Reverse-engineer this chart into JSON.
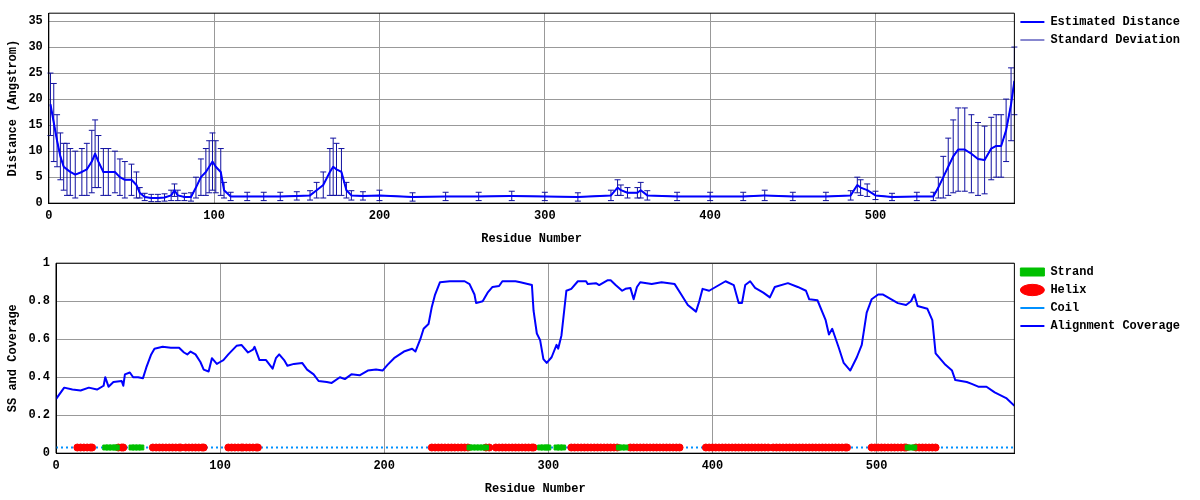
{
  "chart_data": [
    {
      "type": "line",
      "xlabel": "Residue Number",
      "ylabel": "Distance (Angstrom)",
      "xlim": [
        0,
        584
      ],
      "xticks": [
        0,
        100,
        200,
        300,
        400,
        500
      ],
      "ylim": [
        0,
        36.5
      ],
      "yticks": [
        0,
        5,
        10,
        15,
        20,
        25,
        30,
        35
      ],
      "grid": true,
      "legend": "top right",
      "series": [
        {
          "name": "Estimated Distance",
          "color": "#0000ff",
          "marker": "none",
          "x": [
            1,
            3,
            5,
            7,
            9,
            11,
            13,
            16,
            20,
            23,
            26,
            28,
            30,
            33,
            36,
            40,
            43,
            46,
            50,
            53,
            55,
            58,
            62,
            66,
            70,
            74,
            76,
            78,
            82,
            86,
            89,
            92,
            95,
            97,
            99,
            101,
            104,
            106,
            110,
            120,
            130,
            140,
            150,
            158,
            162,
            166,
            170,
            172,
            174,
            177,
            180,
            183,
            190,
            200,
            220,
            240,
            260,
            280,
            300,
            320,
            340,
            344,
            346,
            350,
            356,
            358,
            362,
            380,
            400,
            420,
            433,
            450,
            470,
            485,
            489,
            491,
            495,
            500,
            510,
            525,
            535,
            538,
            541,
            544,
            547,
            550,
            554,
            558,
            562,
            566,
            570,
            573,
            576,
            579,
            582,
            584
          ],
          "values": [
            19,
            15.5,
            12,
            9,
            7,
            6.5,
            6,
            5.5,
            6,
            6.5,
            8,
            9.5,
            8,
            6,
            6,
            6,
            5,
            4.5,
            4.5,
            3.5,
            2,
            1.2,
            1,
            1,
            1.1,
            1.5,
            2.5,
            1.5,
            1.2,
            1.2,
            3,
            5,
            6,
            7,
            8,
            7,
            6,
            2.5,
            1.3,
            1.3,
            1.3,
            1.3,
            1.4,
            1.5,
            2.5,
            3.5,
            6,
            7,
            6.5,
            6,
            2.5,
            1.5,
            1.4,
            1.5,
            1.2,
            1.3,
            1.3,
            1.4,
            1.3,
            1.2,
            1.5,
            3,
            2.5,
            2,
            2,
            2.5,
            1.5,
            1.3,
            1.3,
            1.3,
            1.5,
            1.3,
            1.3,
            1.5,
            3.5,
            3,
            2.5,
            1.5,
            1.2,
            1.3,
            1.3,
            3,
            5,
            7,
            9,
            10.3,
            10.3,
            9.5,
            8.5,
            8.3,
            10.5,
            11,
            11,
            14,
            19,
            23.5
          ]
        },
        {
          "name": "Standard Deviation",
          "color": "#1010a0",
          "marker": "none",
          "x": [
            1,
            3,
            5,
            7,
            9,
            11,
            13,
            16,
            20,
            23,
            26,
            28,
            30,
            33,
            36,
            40,
            43,
            46,
            50,
            53,
            55,
            58,
            62,
            66,
            70,
            74,
            76,
            78,
            82,
            86,
            89,
            92,
            95,
            97,
            99,
            101,
            104,
            106,
            110,
            120,
            130,
            140,
            150,
            158,
            162,
            166,
            170,
            172,
            174,
            177,
            180,
            183,
            190,
            200,
            220,
            240,
            260,
            280,
            300,
            320,
            340,
            344,
            346,
            350,
            356,
            358,
            362,
            380,
            400,
            420,
            433,
            450,
            470,
            485,
            489,
            491,
            495,
            500,
            510,
            525,
            535,
            538,
            541,
            544,
            547,
            550,
            554,
            558,
            562,
            566,
            570,
            573,
            576,
            579,
            582,
            584
          ],
          "values": [
            19,
            15.5,
            12,
            9,
            7,
            6.5,
            6,
            5.5,
            6,
            6.5,
            8,
            9.5,
            8,
            6,
            6,
            6,
            5,
            4.5,
            4.5,
            3.5,
            2,
            1.2,
            1,
            1,
            1.1,
            1.5,
            2.5,
            1.5,
            1.2,
            1.2,
            3,
            5,
            6,
            7,
            8,
            7,
            6,
            2.5,
            1.3,
            1.3,
            1.3,
            1.3,
            1.4,
            1.5,
            2.5,
            3.5,
            6,
            7,
            6.5,
            6,
            2.5,
            1.5,
            1.4,
            1.5,
            1.2,
            1.3,
            1.3,
            1.4,
            1.3,
            1.2,
            1.5,
            3,
            2.5,
            2,
            2,
            2.5,
            1.5,
            1.3,
            1.3,
            1.3,
            1.5,
            1.3,
            1.3,
            1.5,
            3.5,
            3,
            2.5,
            1.5,
            1.2,
            1.3,
            1.3,
            3,
            5,
            7,
            9,
            10.3,
            10.3,
            9.5,
            8.5,
            8.3,
            10.5,
            11,
            11,
            14,
            19,
            23.5
          ],
          "errors": [
            6,
            7.5,
            5,
            4.5,
            4.5,
            5,
            4.5,
            4.5,
            4.5,
            5,
            6,
            6.5,
            5,
            4.5,
            4.5,
            4,
            3.5,
            3.5,
            3,
            2.5,
            1,
            0.7,
            0.7,
            0.7,
            0.7,
            1,
            1.2,
            1,
            0.7,
            0.8,
            2,
            3.5,
            4.5,
            5,
            5.5,
            5,
            4.5,
            1.5,
            0.8,
            0.8,
            0.8,
            0.8,
            0.8,
            0.9,
            1.5,
            2.5,
            4.5,
            5.5,
            5,
            4.5,
            1.5,
            0.9,
            0.8,
            1,
            0.8,
            0.8,
            0.8,
            0.9,
            0.8,
            0.8,
            1,
            1.5,
            1,
            1,
            1,
            1.5,
            0.9,
            0.8,
            0.8,
            0.8,
            1,
            0.8,
            0.8,
            0.9,
            1.5,
            1.5,
            1.2,
            0.8,
            0.7,
            0.8,
            0.8,
            2,
            4,
            5.5,
            7,
            8,
            8,
            7.5,
            7,
            6.5,
            6,
            6,
            6,
            6,
            7,
            6.5
          ]
        }
      ]
    },
    {
      "type": "line",
      "xlabel": "Residue Number",
      "ylabel": "SS and Coverage",
      "xlim": [
        0,
        584
      ],
      "xticks": [
        0,
        100,
        200,
        300,
        400,
        500
      ],
      "ylim": [
        0,
        1
      ],
      "yticks": [
        0,
        0.2,
        0.4,
        0.6,
        0.8,
        1
      ],
      "grid": true,
      "legend": "top right",
      "series": [
        {
          "name": "Helix",
          "type": "scatter",
          "color": "#ff0000",
          "marker": "circle",
          "x": [
            13,
            15,
            17,
            19,
            21,
            22,
            38,
            40,
            41,
            59,
            61,
            63,
            65,
            67,
            69,
            71,
            73,
            75,
            76,
            79,
            81,
            83,
            85,
            87,
            89,
            90,
            105,
            107,
            109,
            111,
            113,
            114,
            116,
            118,
            120,
            122,
            123,
            229,
            231,
            233,
            235,
            237,
            239,
            241,
            243,
            245,
            247,
            249,
            251,
            262,
            264,
            268,
            270,
            272,
            274,
            276,
            278,
            280,
            282,
            284,
            286,
            288,
            290,
            291,
            314,
            316,
            318,
            320,
            322,
            324,
            326,
            328,
            330,
            332,
            334,
            336,
            338,
            340,
            342,
            350,
            352,
            354,
            356,
            358,
            360,
            362,
            364,
            366,
            368,
            370,
            372,
            374,
            376,
            378,
            380,
            396,
            398,
            400,
            402,
            404,
            406,
            408,
            410,
            412,
            414,
            416,
            418,
            420,
            422,
            424,
            426,
            428,
            430,
            432,
            434,
            437,
            439,
            441,
            443,
            445,
            447,
            449,
            451,
            453,
            455,
            457,
            459,
            461,
            463,
            465,
            467,
            469,
            471,
            473,
            475,
            477,
            479,
            481,
            482,
            497,
            499,
            501,
            503,
            505,
            507,
            509,
            511,
            513,
            515,
            517,
            518,
            524,
            526,
            528,
            530,
            532,
            534,
            536
          ],
          "values": [
            0.03,
            0.03,
            0.03,
            0.03,
            0.03,
            0.03,
            0.03,
            0.03,
            0.03,
            0.03,
            0.03,
            0.03,
            0.03,
            0.03,
            0.03,
            0.03,
            0.03,
            0.03,
            0.03,
            0.03,
            0.03,
            0.03,
            0.03,
            0.03,
            0.03,
            0.03,
            0.03,
            0.03,
            0.03,
            0.03,
            0.03,
            0.03,
            0.03,
            0.03,
            0.03,
            0.03,
            0.03,
            0.03,
            0.03,
            0.03,
            0.03,
            0.03,
            0.03,
            0.03,
            0.03,
            0.03,
            0.03,
            0.03,
            0.03,
            0.03,
            0.03,
            0.03,
            0.03,
            0.03,
            0.03,
            0.03,
            0.03,
            0.03,
            0.03,
            0.03,
            0.03,
            0.03,
            0.03,
            0.03,
            0.03,
            0.03,
            0.03,
            0.03,
            0.03,
            0.03,
            0.03,
            0.03,
            0.03,
            0.03,
            0.03,
            0.03,
            0.03,
            0.03,
            0.03,
            0.03,
            0.03,
            0.03,
            0.03,
            0.03,
            0.03,
            0.03,
            0.03,
            0.03,
            0.03,
            0.03,
            0.03,
            0.03,
            0.03,
            0.03,
            0.03,
            0.03,
            0.03,
            0.03,
            0.03,
            0.03,
            0.03,
            0.03,
            0.03,
            0.03,
            0.03,
            0.03,
            0.03,
            0.03,
            0.03,
            0.03,
            0.03,
            0.03,
            0.03,
            0.03,
            0.03,
            0.03,
            0.03,
            0.03,
            0.03,
            0.03,
            0.03,
            0.03,
            0.03,
            0.03,
            0.03,
            0.03,
            0.03,
            0.03,
            0.03,
            0.03,
            0.03,
            0.03,
            0.03,
            0.03,
            0.03,
            0.03,
            0.03,
            0.03,
            0.03,
            0.03,
            0.03,
            0.03,
            0.03,
            0.03,
            0.03,
            0.03,
            0.03,
            0.03,
            0.03,
            0.03,
            0.03,
            0.03,
            0.03,
            0.03,
            0.03,
            0.03,
            0.03,
            0.03
          ]
        },
        {
          "name": "Strand",
          "type": "scatter",
          "color": "#00c000",
          "marker": "square",
          "x": [
            30,
            32,
            34,
            36,
            37,
            46,
            48,
            50,
            52,
            252,
            254,
            256,
            258,
            260,
            262,
            295,
            297,
            299,
            300,
            305,
            307,
            309,
            343,
            345,
            347,
            519,
            521,
            523
          ],
          "values": [
            0.03,
            0.03,
            0.03,
            0.03,
            0.03,
            0.03,
            0.03,
            0.03,
            0.03,
            0.03,
            0.03,
            0.03,
            0.03,
            0.03,
            0.03,
            0.03,
            0.03,
            0.03,
            0.03,
            0.03,
            0.03,
            0.03,
            0.03,
            0.03,
            0.03,
            0.03,
            0.03,
            0.03
          ]
        },
        {
          "name": "Coil",
          "color": "#0090ff",
          "marker": "none",
          "line_style": "dotted",
          "x": [
            0,
            584
          ],
          "values": [
            0.03,
            0.03
          ]
        },
        {
          "name": "Alignment Coverage",
          "color": "#0000ff",
          "marker": "none",
          "x": [
            0,
            5,
            10,
            15,
            20,
            25,
            29,
            30,
            32,
            35,
            40,
            41,
            42,
            45,
            47,
            50,
            53,
            55,
            58,
            60,
            65,
            70,
            75,
            78,
            80,
            82,
            85,
            88,
            90,
            93,
            95,
            98,
            100,
            102,
            105,
            110,
            113,
            117,
            120,
            121,
            124,
            128,
            132,
            134,
            136,
            139,
            141,
            145,
            150,
            153,
            157,
            160,
            165,
            168,
            173,
            176,
            180,
            185,
            190,
            195,
            199,
            202,
            206,
            212,
            217,
            219,
            222,
            224,
            227,
            229,
            231,
            234,
            240,
            249,
            252,
            255,
            256,
            260,
            263,
            266,
            270,
            272,
            280,
            283,
            290,
            291,
            293,
            295,
            297,
            299,
            302,
            305,
            306,
            308,
            311,
            314,
            318,
            323,
            324,
            329,
            331,
            336,
            338,
            341,
            345,
            347,
            350,
            352,
            354,
            356,
            363,
            369,
            377,
            381,
            385,
            390,
            392,
            394,
            398,
            403,
            408,
            413,
            416,
            418,
            420,
            423,
            426,
            431,
            435,
            438,
            446,
            452,
            457,
            459,
            464,
            469,
            471,
            473,
            477,
            480,
            484,
            488,
            491,
            494,
            497,
            501,
            504,
            513,
            518,
            521,
            523,
            525,
            531,
            534,
            536,
            542,
            546,
            548,
            555,
            558,
            562,
            567,
            572,
            579,
            584
          ],
          "values": [
            0.285,
            0.345,
            0.335,
            0.33,
            0.345,
            0.335,
            0.355,
            0.4,
            0.35,
            0.375,
            0.38,
            0.355,
            0.415,
            0.425,
            0.4,
            0.4,
            0.395,
            0.45,
            0.52,
            0.55,
            0.56,
            0.555,
            0.555,
            0.53,
            0.52,
            0.535,
            0.52,
            0.48,
            0.44,
            0.43,
            0.5,
            0.47,
            0.48,
            0.49,
            0.52,
            0.565,
            0.57,
            0.53,
            0.545,
            0.56,
            0.49,
            0.49,
            0.445,
            0.5,
            0.52,
            0.49,
            0.46,
            0.47,
            0.475,
            0.44,
            0.415,
            0.38,
            0.375,
            0.37,
            0.4,
            0.39,
            0.415,
            0.41,
            0.435,
            0.44,
            0.435,
            0.465,
            0.5,
            0.535,
            0.55,
            0.535,
            0.6,
            0.655,
            0.68,
            0.77,
            0.835,
            0.9,
            0.905,
            0.905,
            0.89,
            0.835,
            0.79,
            0.8,
            0.845,
            0.875,
            0.88,
            0.905,
            0.905,
            0.9,
            0.885,
            0.75,
            0.63,
            0.595,
            0.495,
            0.475,
            0.505,
            0.57,
            0.55,
            0.62,
            0.855,
            0.865,
            0.905,
            0.905,
            0.89,
            0.895,
            0.885,
            0.91,
            0.91,
            0.885,
            0.855,
            0.865,
            0.87,
            0.81,
            0.875,
            0.9,
            0.89,
            0.9,
            0.89,
            0.835,
            0.78,
            0.745,
            0.8,
            0.865,
            0.855,
            0.88,
            0.905,
            0.885,
            0.79,
            0.79,
            0.885,
            0.905,
            0.87,
            0.845,
            0.82,
            0.875,
            0.895,
            0.875,
            0.855,
            0.81,
            0.805,
            0.7,
            0.625,
            0.655,
            0.555,
            0.475,
            0.435,
            0.505,
            0.57,
            0.74,
            0.81,
            0.835,
            0.835,
            0.79,
            0.78,
            0.8,
            0.835,
            0.775,
            0.76,
            0.7,
            0.525,
            0.465,
            0.435,
            0.385,
            0.375,
            0.365,
            0.35,
            0.35,
            0.32,
            0.29,
            0.25
          ]
        }
      ]
    }
  ]
}
